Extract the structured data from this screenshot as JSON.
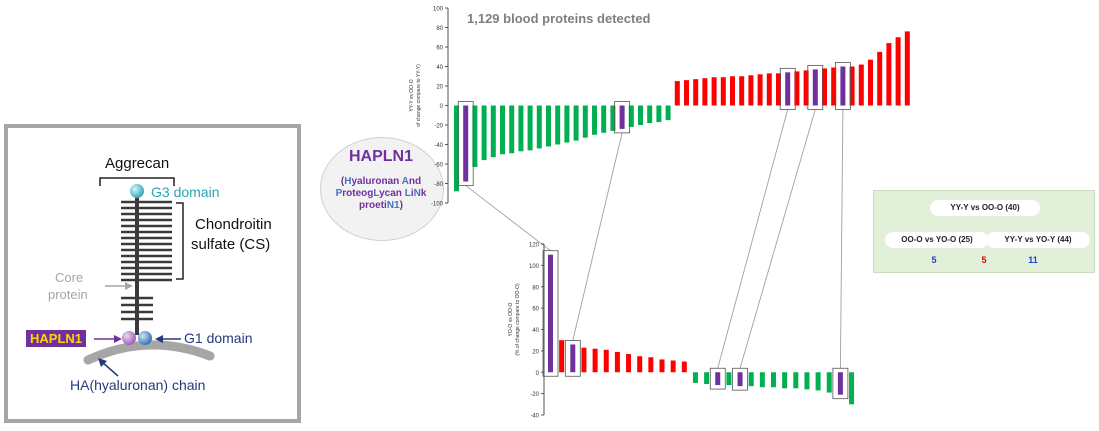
{
  "aggrecan_diagram": {
    "title": "Aggrecan",
    "g3_label": "G3 domain",
    "cs_label_line1": "Chondroitin",
    "cs_label_line2": "sulfate (CS)",
    "core_label_line1": "Core",
    "core_label_line2": "protein",
    "hapln1_tag": "HAPLN1",
    "g1_label": "G1 domain",
    "ha_label": "HA(hyaluronan) chain",
    "colors": {
      "teal": "#2aa6b5",
      "navy": "#243a7a",
      "purple": "#7030a0",
      "yellow": "#ffd700",
      "gray": "#a6a6a6"
    }
  },
  "callout": {
    "name": "HAPLN1",
    "desc": [
      [
        {
          "t": "(",
          "c": "#7030a0"
        },
        {
          "t": "H",
          "c": "#4472c4"
        },
        {
          "t": "yaluronan ",
          "c": "#7030a0"
        },
        {
          "t": "A",
          "c": "#4472c4"
        },
        {
          "t": "nd",
          "c": "#7030a0"
        }
      ],
      [
        {
          "t": "P",
          "c": "#4472c4"
        },
        {
          "t": "roteog",
          "c": "#7030a0"
        },
        {
          "t": "L",
          "c": "#4472c4"
        },
        {
          "t": "ycan ",
          "c": "#7030a0"
        },
        {
          "t": "L",
          "c": "#4472c4"
        },
        {
          "t": "i",
          "c": "#7030a0"
        },
        {
          "t": "N",
          "c": "#4472c4"
        },
        {
          "t": "k",
          "c": "#7030a0"
        }
      ],
      [
        {
          "t": "proeti",
          "c": "#7030a0"
        },
        {
          "t": "N",
          "c": "#4472c4"
        },
        {
          "t": "1",
          "c": "#4472c4"
        },
        {
          "t": ")",
          "c": "#7030a0"
        }
      ]
    ]
  },
  "chart_data": [
    {
      "type": "bar",
      "title": "1,129 blood proteins detected",
      "ylabel": "YY-Y vs OO-O\nof change compare to YY-Y)",
      "ylim": [
        -100,
        100
      ],
      "yticks": [
        -100,
        -80,
        -60,
        -40,
        -20,
        0,
        20,
        40,
        60,
        80,
        100
      ],
      "values": [
        -88,
        -78,
        -63,
        -56,
        -53,
        -50,
        -49,
        -47,
        -46,
        -44,
        -42,
        -40,
        -38,
        -36,
        -33,
        -30,
        -28,
        -26,
        -24,
        -22,
        -20,
        -18,
        -17,
        -15,
        25,
        26,
        27,
        28,
        29,
        29,
        30,
        30,
        31,
        32,
        33,
        33,
        34,
        35,
        36,
        37,
        38,
        39,
        40,
        40,
        42,
        47,
        55,
        64,
        70,
        76
      ],
      "highlight_indices": [
        1,
        18,
        36,
        39,
        42
      ],
      "colors": {
        "negative": "#00b050",
        "positive": "#ff0000",
        "highlight": "#7030a0"
      }
    },
    {
      "type": "bar",
      "ylabel": "YO-O vs OO-O\n(% of change compare to OO-O)",
      "ylim": [
        -40,
        120
      ],
      "yticks": [
        -40,
        -20,
        0,
        20,
        40,
        60,
        80,
        100,
        120
      ],
      "values": [
        110,
        30,
        26,
        23,
        22,
        21,
        19,
        17,
        15,
        14,
        12,
        11,
        10,
        -10,
        -11,
        -12,
        -12,
        -13,
        -13,
        -14,
        -14,
        -15,
        -15,
        -16,
        -17,
        -19,
        -21,
        -30
      ],
      "highlight_indices": [
        0,
        2,
        15,
        17,
        26
      ],
      "colors": {
        "negative": "#00b050",
        "positive": "#ff0000",
        "highlight": "#7030a0"
      }
    }
  ],
  "comparison_panel": {
    "top": "YY-Y vs OO-O (40)",
    "left": "OO-O vs YO-O (25)",
    "right": "YY-Y vs YO-Y (44)",
    "counts": [
      {
        "value": "5",
        "color": "#1f3fd0"
      },
      {
        "value": "5",
        "color": "#e00000"
      },
      {
        "value": "11",
        "color": "#1f3fd0"
      }
    ]
  }
}
